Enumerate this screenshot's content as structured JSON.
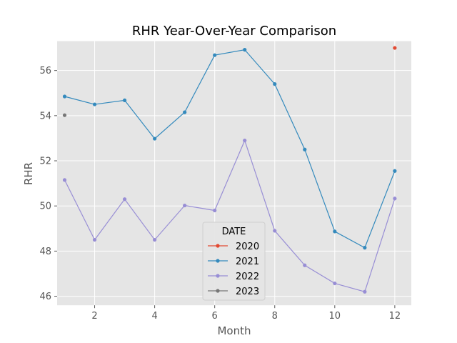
{
  "chart_data": {
    "type": "line",
    "title": "RHR Year-Over-Year Comparison",
    "xlabel": "Month",
    "ylabel": "RHR",
    "xlim": [
      0.75,
      12.55
    ],
    "ylim": [
      45.6,
      57.3
    ],
    "xticks": [
      2,
      4,
      6,
      8,
      10,
      12
    ],
    "yticks": [
      46,
      48,
      50,
      52,
      54,
      56
    ],
    "grid": true,
    "legend": {
      "title": "DATE",
      "placement": "lower-center"
    },
    "series": [
      {
        "name": "2020",
        "color": "#E24A33",
        "x": [
          12
        ],
        "y": [
          57.0
        ]
      },
      {
        "name": "2021",
        "color": "#348ABD",
        "x": [
          1,
          2,
          3,
          4,
          5,
          6,
          7,
          8,
          9,
          10,
          11,
          12
        ],
        "y": [
          54.85,
          54.5,
          54.68,
          52.98,
          54.15,
          56.68,
          56.92,
          55.4,
          52.5,
          48.87,
          48.15,
          51.55
        ]
      },
      {
        "name": "2022",
        "color": "#988ED5",
        "x": [
          1,
          2,
          3,
          4,
          5,
          6,
          7,
          8,
          9,
          10,
          11,
          12
        ],
        "y": [
          51.15,
          48.5,
          50.3,
          48.5,
          50.02,
          49.8,
          52.9,
          48.9,
          47.37,
          46.57,
          46.2,
          50.33
        ]
      },
      {
        "name": "2023",
        "color": "#777777",
        "x": [
          1
        ],
        "y": [
          54.02
        ]
      }
    ]
  }
}
